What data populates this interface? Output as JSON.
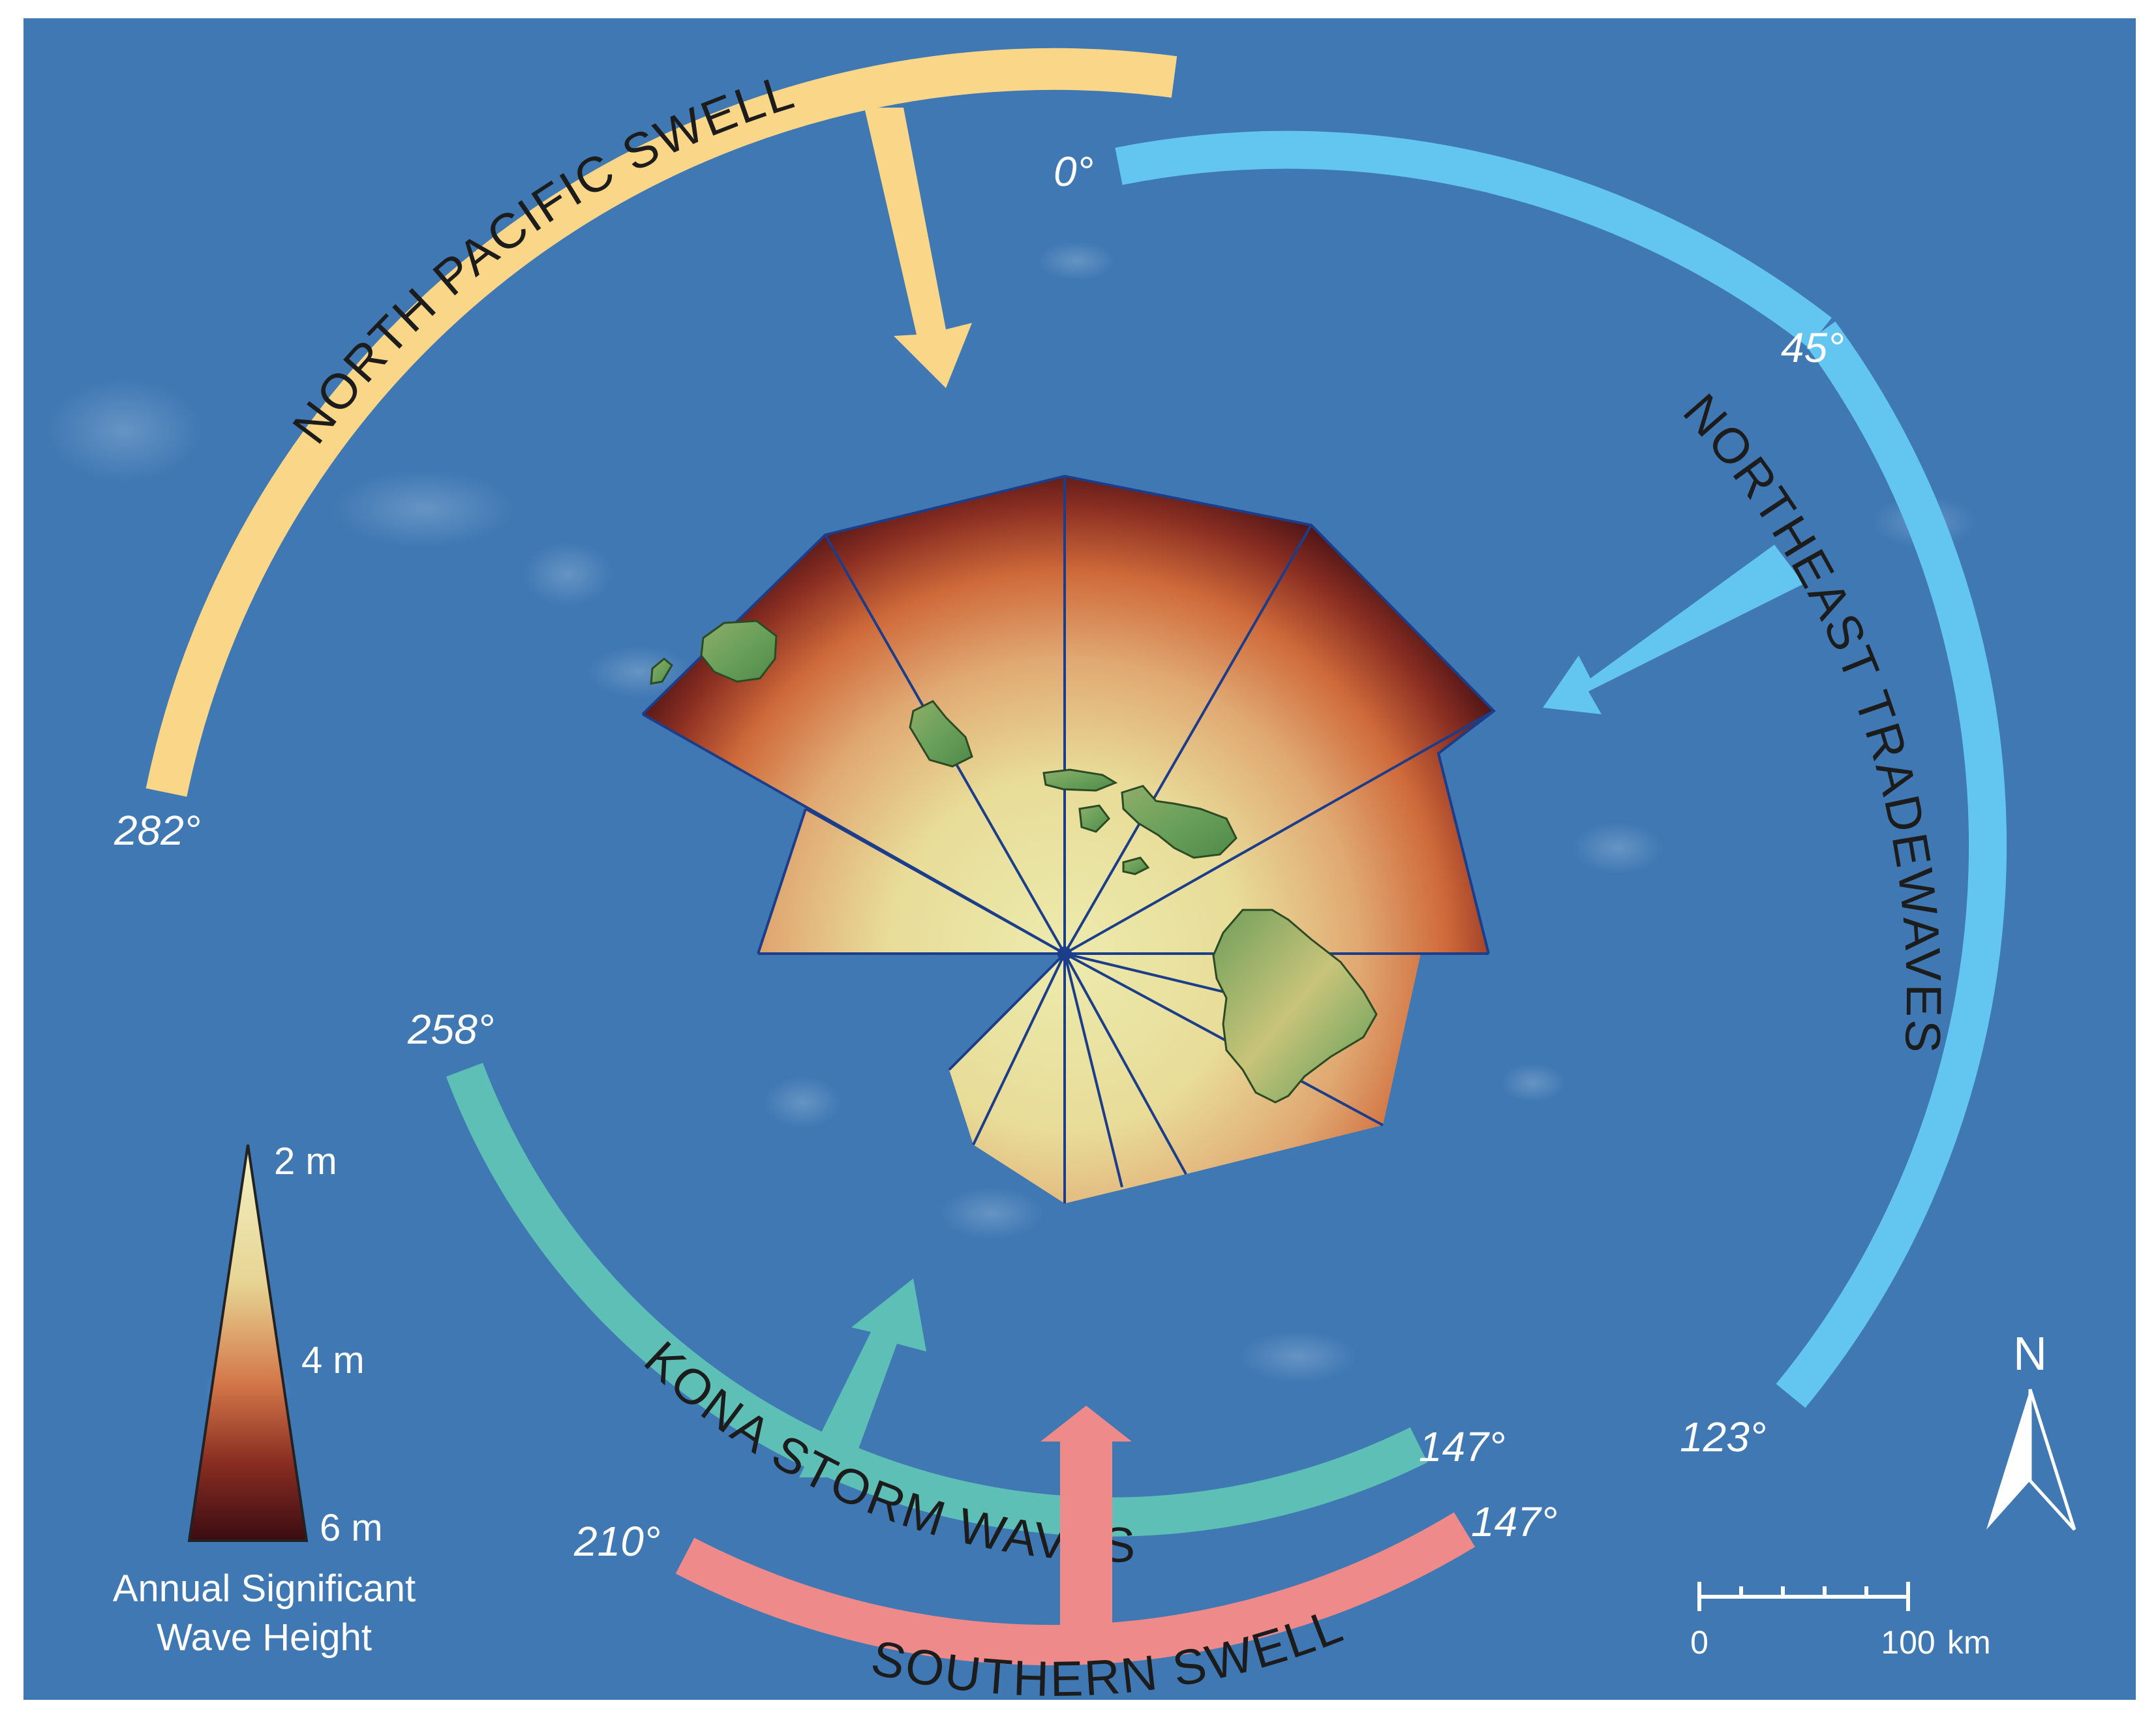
{
  "colors": {
    "ocean": "#3f78b3",
    "north_pacific": "#fad688",
    "northeast": "#62c6f0",
    "kona": "#5dbfb6",
    "southern": "#ee8a89",
    "wave_low": "#e8e4a2",
    "wave_mid": "#cf6a3a",
    "wave_high": "#3b0c12",
    "island": "#6aa05a",
    "ray": "#1c3d8a"
  },
  "swells": {
    "north_pacific": {
      "label": "NORTH PACIFIC SWELL",
      "from_deg": "282°",
      "to_deg": ""
    },
    "northeast": {
      "label": "NORTHEAST TRADEWAVES",
      "from_deg": "0°",
      "mid_deg": "45°",
      "to_deg": "123°"
    },
    "kona": {
      "label": "KONA STORM WAVES",
      "from_deg": "258°",
      "to_deg": "147°"
    },
    "southern": {
      "label": "SOUTHERN SWELL",
      "from_deg": "210°",
      "to_deg": "147°"
    }
  },
  "legend": {
    "top": "2 m",
    "mid": "4 m",
    "bottom": "6 m",
    "caption_line1": "Annual Significant",
    "caption_line2": "Wave Height"
  },
  "scalebar": {
    "zero": "0",
    "max": "100",
    "unit": "km"
  },
  "north": {
    "label": "N",
    "icon": "north-arrow-icon"
  }
}
